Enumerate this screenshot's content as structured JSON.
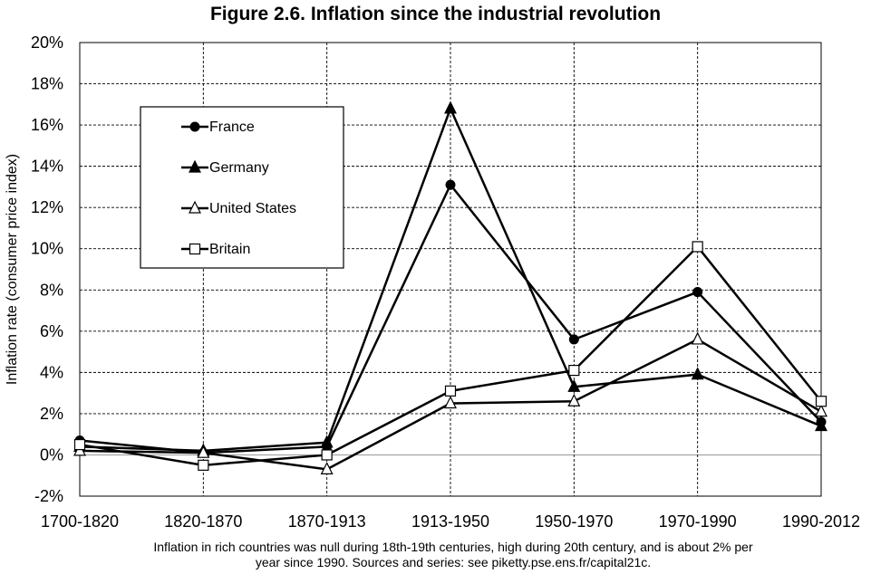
{
  "chart_data": {
    "type": "line",
    "title": "Figure 2.6. Inflation since the industrial revolution",
    "ylabel": "Inflation rate (consumer price index)",
    "xlabel": "",
    "categories": [
      "1700-1820",
      "1820-1870",
      "1870-1913",
      "1913-1950",
      "1950-1970",
      "1970-1990",
      "1990-2012"
    ],
    "ylim": [
      -2,
      20
    ],
    "ytick_step": 2,
    "ytick_suffix": "%",
    "grid": "dashed",
    "legend_location": "upper-left",
    "series": [
      {
        "name": "France",
        "marker": "circle-filled",
        "values": [
          0.7,
          0.1,
          0.4,
          13.1,
          5.6,
          7.9,
          1.6
        ]
      },
      {
        "name": "Germany",
        "marker": "triangle-filled",
        "values": [
          0.4,
          0.2,
          0.6,
          16.8,
          3.3,
          3.9,
          1.4
        ]
      },
      {
        "name": "United States",
        "marker": "triangle-open",
        "values": [
          0.2,
          0.1,
          -0.7,
          2.5,
          2.6,
          5.6,
          2.1
        ]
      },
      {
        "name": "Britain",
        "marker": "square-open",
        "values": [
          0.5,
          -0.5,
          0.0,
          3.1,
          4.1,
          10.1,
          2.6
        ]
      }
    ]
  },
  "caption": {
    "line1": "Inflation in rich countries was null during 18th-19th centuries, high during 20th century, and is about 2% per",
    "line2": "year since 1990. Sources and series: see piketty.pse.ens.fr/capital21c."
  }
}
